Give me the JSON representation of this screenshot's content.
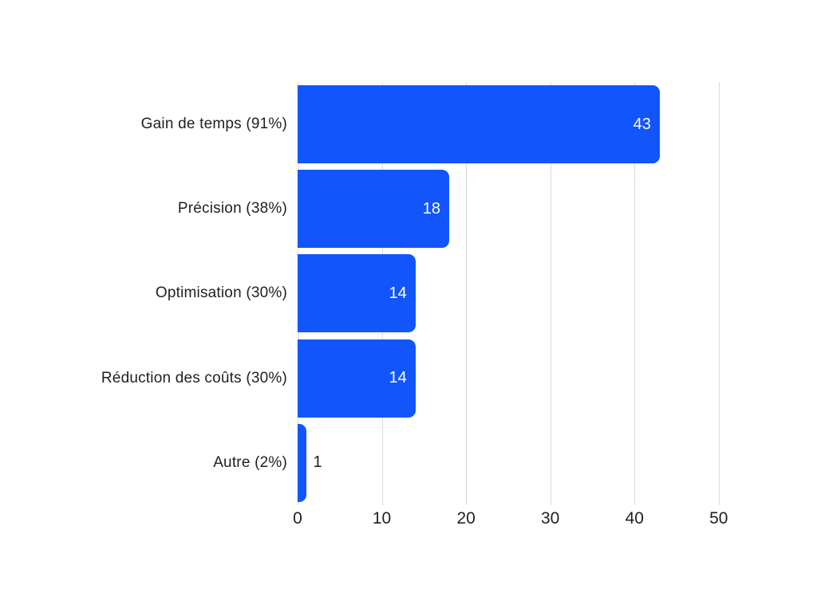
{
  "chart_data": {
    "type": "bar",
    "orientation": "horizontal",
    "title": "",
    "xlabel": "",
    "ylabel": "",
    "categories": [
      "Gain de temps (91%)",
      "Précision (38%)",
      "Optimisation (30%)",
      "Réduction des coûts (30%)",
      "Autre (2%)"
    ],
    "values": [
      43,
      18,
      14,
      14,
      1
    ],
    "value_labels": [
      "43",
      "18",
      "14",
      "14",
      "1"
    ],
    "x_ticks": [
      0,
      10,
      20,
      30,
      40,
      50
    ],
    "xlim": [
      0,
      55.7
    ],
    "grid": true,
    "legend": "none",
    "bar_color": "#1155fb",
    "gridline_color": "#dadada",
    "text_color": "#212121",
    "value_label_color_inside": "#ffffff",
    "value_label_color_outside": "#212121",
    "background_color": "#ffffff"
  }
}
